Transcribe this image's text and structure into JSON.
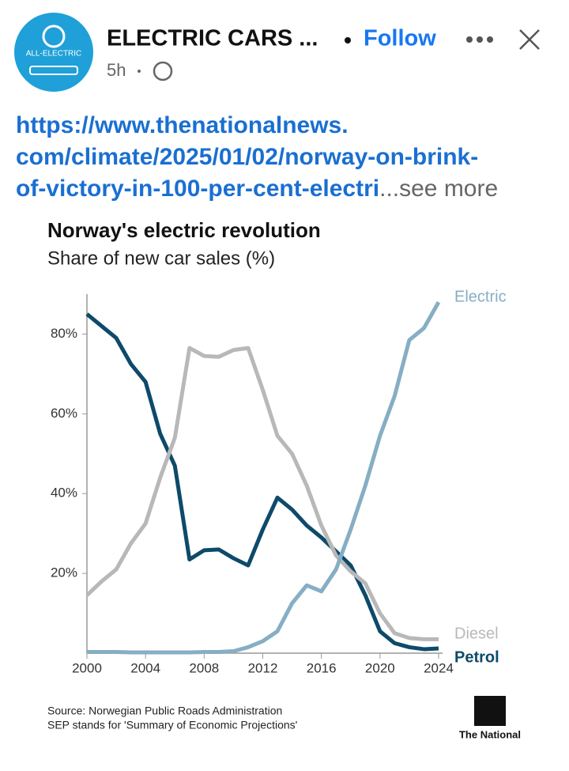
{
  "post": {
    "author": "ELECTRIC CARS ...",
    "follow": "Follow",
    "time": "5h",
    "avatar_text": "ALL-ELECTRIC",
    "link_lines": [
      "https://www.thenationalnews.",
      "com/climate/2025/01/02/norway-on-brink-",
      "of-victory-in-100-per-cent-electri"
    ],
    "see_more": "...see more"
  },
  "chart_data": {
    "type": "line",
    "title": "Norway's electric revolution",
    "subtitle": "Share of new car sales (%)",
    "x": [
      2000,
      2001,
      2002,
      2003,
      2004,
      2005,
      2006,
      2007,
      2008,
      2009,
      2010,
      2011,
      2012,
      2013,
      2014,
      2015,
      2016,
      2017,
      2018,
      2019,
      2020,
      2021,
      2022,
      2023,
      2024
    ],
    "series": [
      {
        "name": "Petrol",
        "color": "#0d4a6b",
        "values": [
          85,
          82,
          79,
          72.5,
          68,
          55,
          47,
          23.5,
          25.8,
          26,
          23.8,
          22,
          31,
          39,
          36,
          32,
          29,
          25.5,
          22,
          14.5,
          5.5,
          2.5,
          1.5,
          1,
          1.2
        ]
      },
      {
        "name": "Diesel",
        "color": "#b8b8b8",
        "values": [
          14.5,
          18,
          21,
          27.5,
          32.5,
          44,
          54,
          76.5,
          74.5,
          74.3,
          76,
          76.5,
          66,
          54.5,
          50,
          42,
          32,
          24.5,
          20.5,
          17.5,
          10,
          5,
          3.8,
          3.5,
          3.5
        ]
      },
      {
        "name": "Electric",
        "color": "#86aec4",
        "values": [
          0.3,
          0.3,
          0.3,
          0.2,
          0.2,
          0.2,
          0.2,
          0.2,
          0.3,
          0.3,
          0.5,
          1.5,
          3,
          5.5,
          12.5,
          17,
          15.5,
          21,
          31,
          42,
          54.5,
          64.5,
          78.5,
          81.5,
          88
        ]
      }
    ],
    "xlim": [
      2000,
      2024
    ],
    "xticks": [
      2000,
      2004,
      2008,
      2012,
      2016,
      2020,
      2024
    ],
    "ylim": [
      0,
      90
    ],
    "yticks": [
      {
        "value": 20,
        "label": "20%"
      },
      {
        "value": 40,
        "label": "40%"
      },
      {
        "value": 60,
        "label": "60%"
      },
      {
        "value": 80,
        "label": "80%"
      }
    ],
    "source": [
      "Source: Norwegian Public Roads Administration",
      "SEP stands for 'Summary of Economic Projections'"
    ],
    "logo": "The National"
  }
}
